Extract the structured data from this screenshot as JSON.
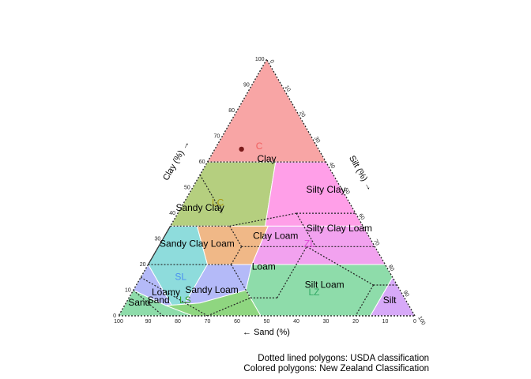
{
  "chart_data": {
    "type": "ternary",
    "axes": {
      "sand": {
        "label": "← Sand (%)",
        "ticks": [
          100,
          90,
          80,
          70,
          60,
          50,
          40,
          30,
          20,
          10,
          0
        ]
      },
      "clay": {
        "label": "Clay (%) →",
        "ticks": [
          0,
          10,
          20,
          30,
          40,
          50,
          60,
          70,
          80,
          90,
          100
        ]
      },
      "silt": {
        "label": "Silt (%) →",
        "ticks": [
          0,
          10,
          20,
          30,
          40,
          50,
          60,
          70,
          80,
          90,
          100
        ]
      }
    },
    "nz_classes": [
      {
        "code": "C",
        "color": "#f8a5a5",
        "label_color": "#f06060",
        "label_at": {
          "sand": 20,
          "silt": 15
        }
      },
      {
        "code": "LC",
        "color": "#b5cf7f",
        "label_color": "#a89a10",
        "label_at": {
          "sand": 45,
          "silt": 12
        }
      },
      {
        "code": "ZL",
        "color": "#f2a2ef",
        "label_color": "#e04ad8",
        "label_at": {
          "sand": 22,
          "silt": 51
        }
      },
      {
        "code": "SL",
        "color": "#b4baf8",
        "label_color": "#4a90f0",
        "label_at": {
          "sand": 72,
          "silt": 14
        }
      },
      {
        "code": "LZ",
        "color": "#8edcaa",
        "label_color": "#33aa66",
        "label_at": {
          "sand": 30,
          "silt": 62
        }
      },
      {
        "code": "LS",
        "color": "#8fd680",
        "label_color": "#3a9e2a",
        "label_at": {
          "sand": 75,
          "silt": 20
        }
      },
      {
        "code": "",
        "color": "#8edcdc",
        "label_color": "#000000",
        "label_at": null
      },
      {
        "code": "",
        "color": "#f0b887",
        "label_color": "#000000",
        "label_at": null
      },
      {
        "code": "",
        "color": "#ff9fe8",
        "label_color": "#000000",
        "label_at": null
      },
      {
        "code": "",
        "color": "#d7a9f8",
        "label_color": "#000000",
        "label_at": null
      },
      {
        "code": "",
        "color": "#8edcaa",
        "label_color": "#000000",
        "label_at": null
      }
    ],
    "usda_classes": [
      {
        "name": "Clay",
        "label_at": {
          "sand": 20,
          "silt": 20
        }
      },
      {
        "name": "Silty Clay",
        "label_at": {
          "sand": 6,
          "silt": 46
        }
      },
      {
        "name": "Sandy Clay",
        "label_at": {
          "sand": 52,
          "silt": 7
        }
      },
      {
        "name": "Clay Loam",
        "label_at": {
          "sand": 32,
          "silt": 38
        }
      },
      {
        "name": "Silty Clay Loam",
        "label_at": {
          "sand": 9,
          "silt": 58
        }
      },
      {
        "name": "Sandy Clay Loam",
        "label_at": {
          "sand": 60,
          "silt": 13
        }
      },
      {
        "name": "Loam",
        "label_at": {
          "sand": 42,
          "silt": 40
        }
      },
      {
        "name": "Silt Loam",
        "label_at": {
          "sand": 25,
          "silt": 64
        }
      },
      {
        "name": "Sandy Loam",
        "label_at": {
          "sand": 64,
          "silt": 27
        }
      },
      {
        "name": "Loamy",
        "label_at": {
          "sand": 80,
          "silt": 12
        }
      },
      {
        "name": "Sand",
        "label_at": {
          "sand": 91,
          "silt": 5
        }
      },
      {
        "name": "Sand",
        "label_at": {
          "sand": 84,
          "silt": 11
        }
      },
      {
        "name": "Silt",
        "label_at": {
          "sand": 6,
          "silt": 89
        }
      }
    ],
    "points": [
      {
        "sand": 26,
        "silt": 9,
        "clay": 65,
        "color": "#7a1a1a"
      }
    ]
  },
  "caption": {
    "line1": "Dotted lined polygons: USDA classification",
    "line2": "Colored polygons: New Zealand Classification"
  }
}
